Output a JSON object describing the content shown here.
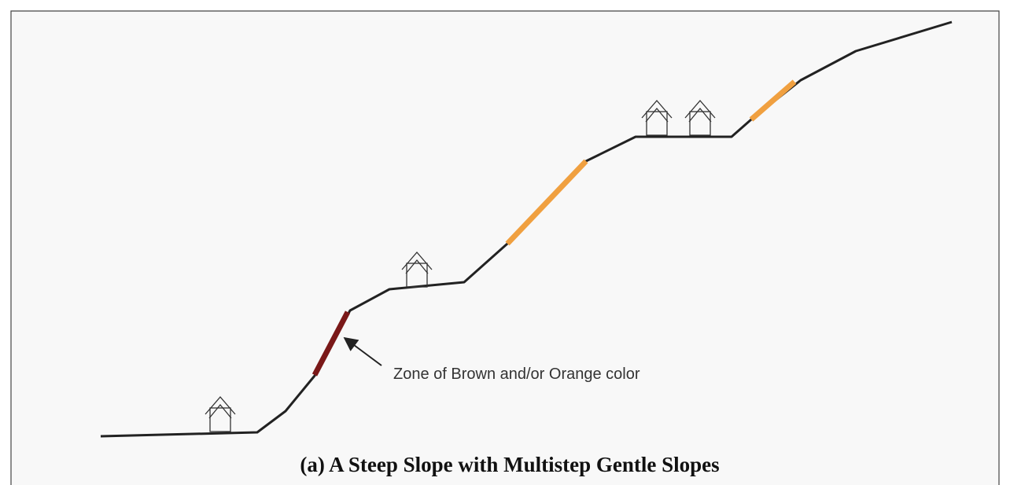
{
  "annotation": "Zone of Brown and/or Orange color",
  "caption": "(a) A Steep Slope with Multistep Gentle Slopes"
}
